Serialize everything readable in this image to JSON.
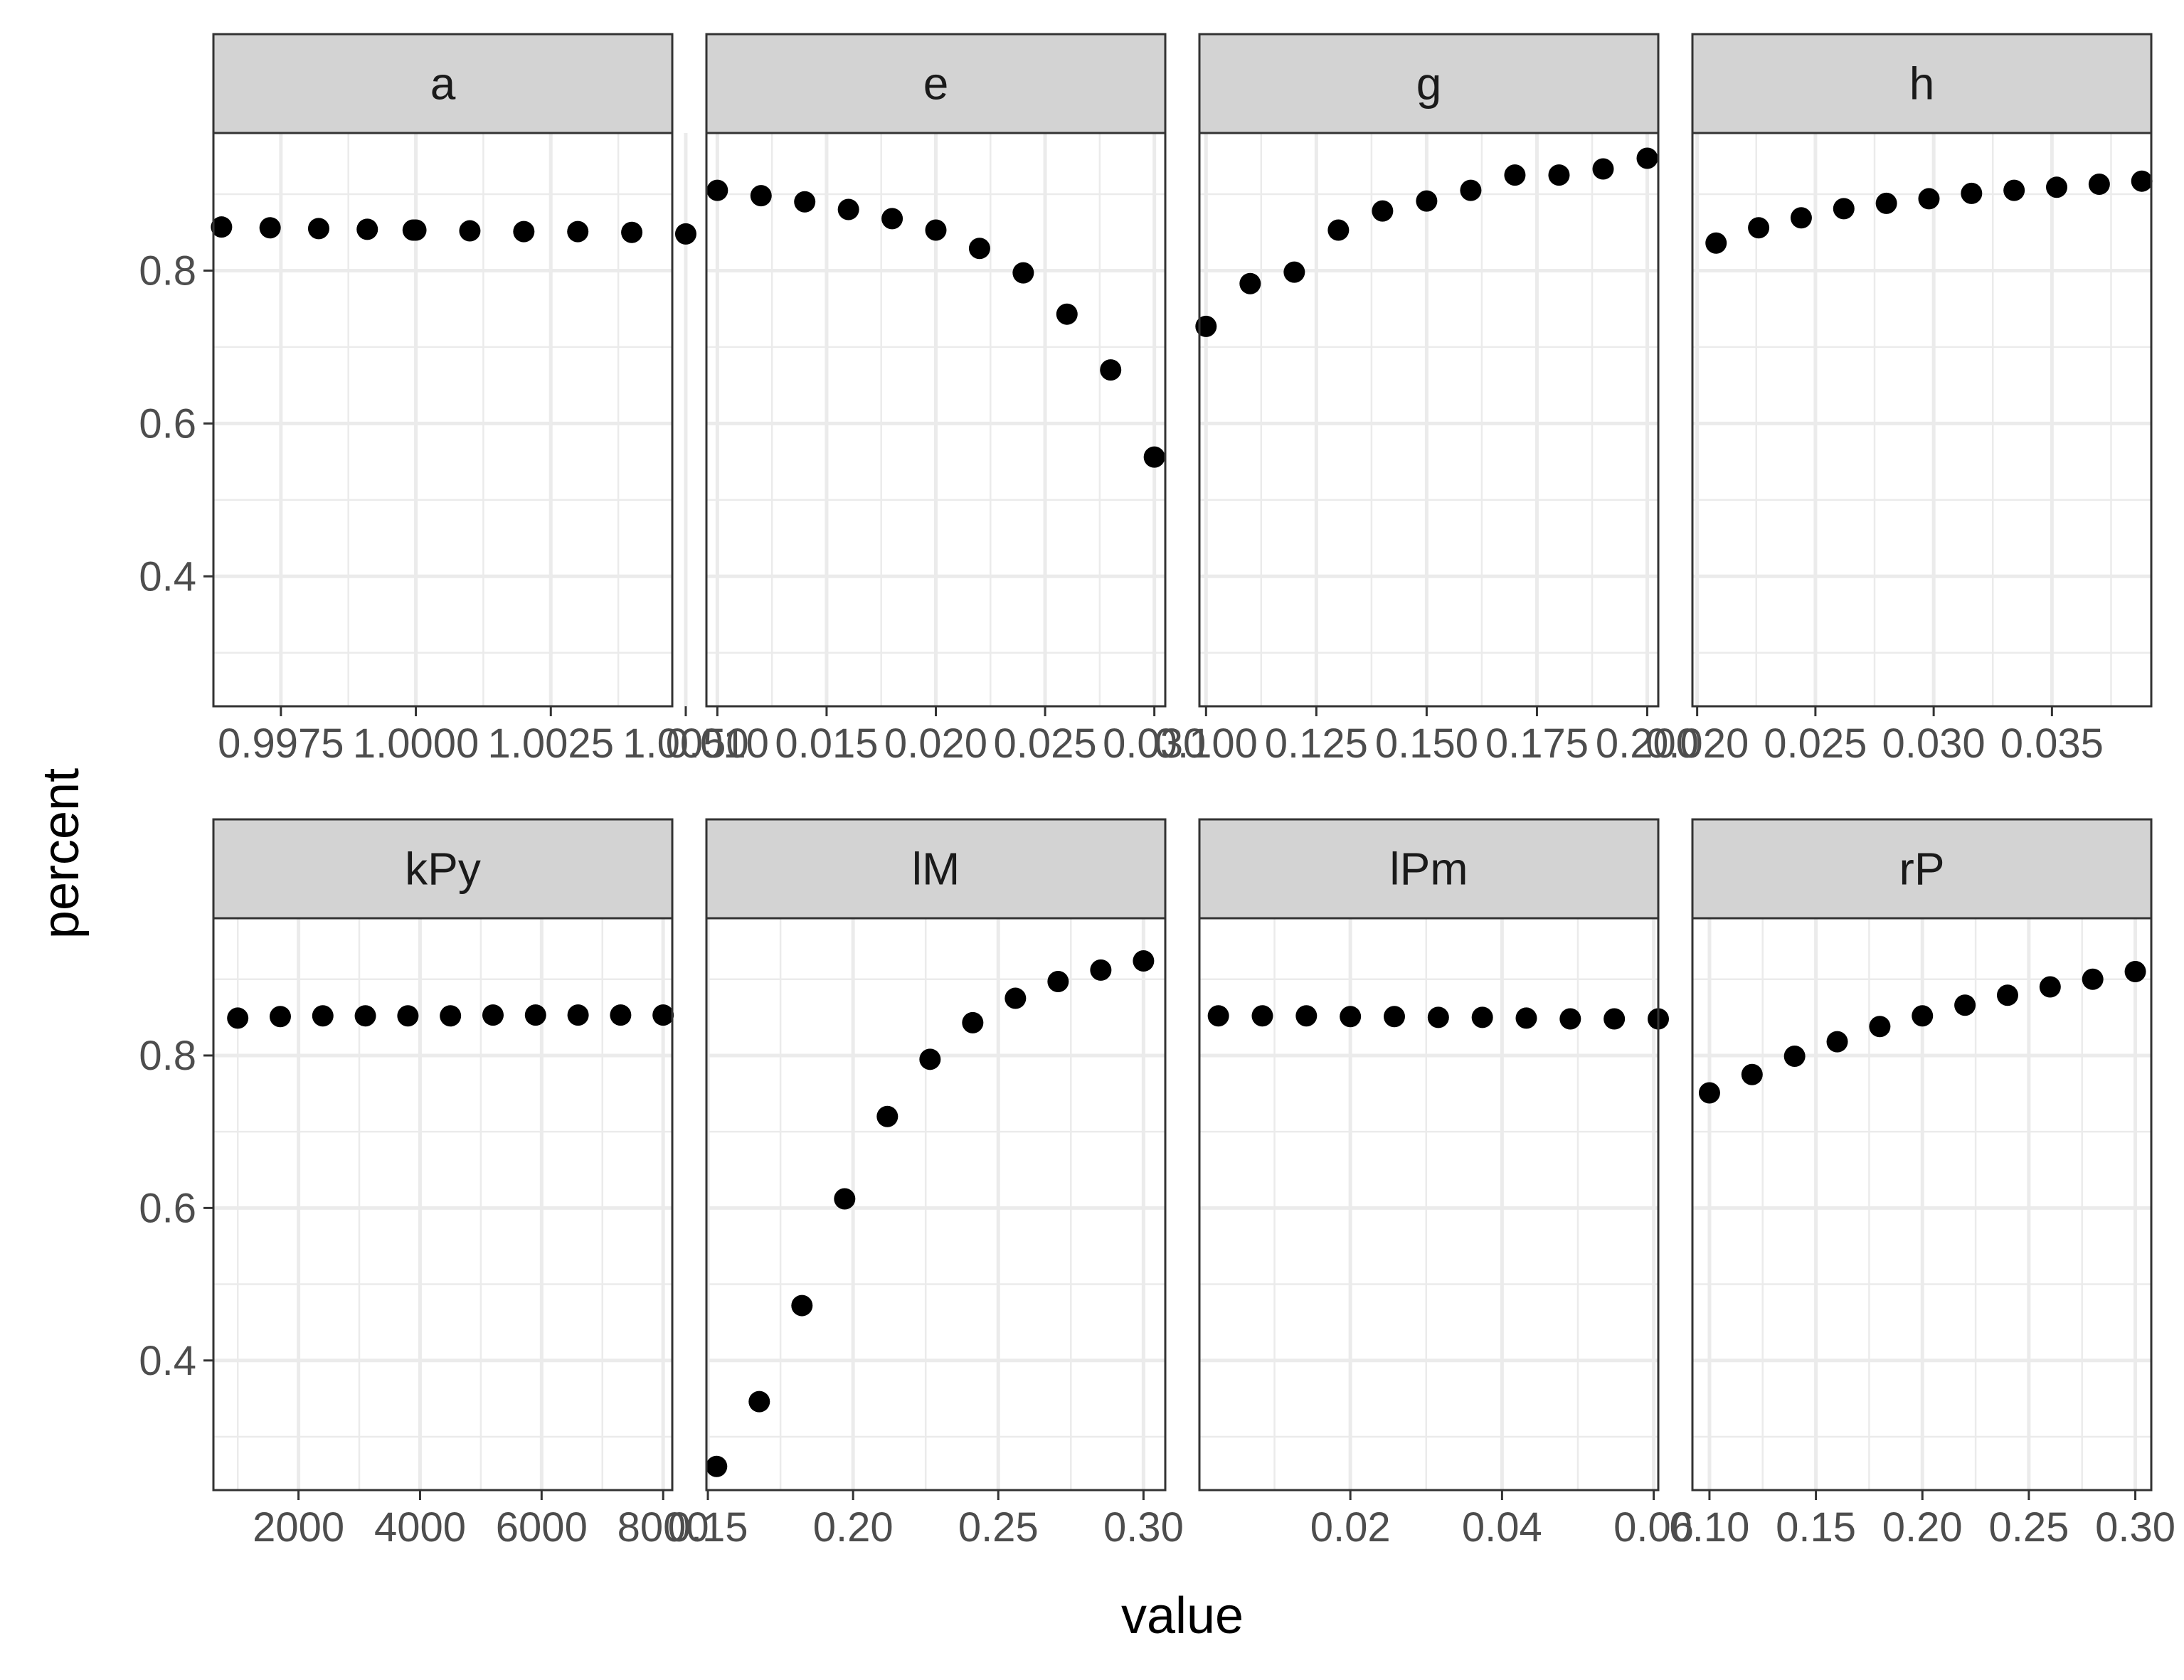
{
  "chart_data": {
    "type": "scatter",
    "layout": "facet-wrap, 2 rows x 4 columns, free x scales, shared y scale",
    "xlabel": "value",
    "ylabel": "percent",
    "ylim": [
      0.23,
      0.98
    ],
    "y_ticks": [
      0.4,
      0.6,
      0.8
    ],
    "y_tick_labels": [
      "0.4",
      "0.6",
      "0.8"
    ],
    "grid": true,
    "point_color": "#000000",
    "strip_fill": "#d3d3d3",
    "facets": [
      {
        "label": "a",
        "xlim": [
          0.99625,
          1.00475
        ],
        "x_ticks": [
          0.9975,
          1.0,
          1.0025,
          1.005
        ],
        "x_tick_labels": [
          "0.9975",
          "1.0000",
          "1.0025",
          "1.0050"
        ],
        "x": [
          0.9964,
          0.9973,
          0.9982,
          0.9991,
          0.99995,
          1.0,
          1.001,
          1.002,
          1.003,
          1.004,
          1.005
        ],
        "y": [
          0.857,
          0.856,
          0.855,
          0.854,
          0.853,
          0.853,
          0.852,
          0.851,
          0.851,
          0.85,
          0.848
        ]
      },
      {
        "label": "e",
        "xlim": [
          0.0095,
          0.0305
        ],
        "x_ticks": [
          0.01,
          0.015,
          0.02,
          0.025,
          0.03
        ],
        "x_tick_labels": [
          "0.010",
          "0.015",
          "0.020",
          "0.025",
          "0.030"
        ],
        "x": [
          0.01,
          0.012,
          0.014,
          0.016,
          0.018,
          0.02,
          0.022,
          0.024,
          0.026,
          0.028,
          0.03
        ],
        "y": [
          0.905,
          0.898,
          0.89,
          0.88,
          0.868,
          0.853,
          0.829,
          0.797,
          0.743,
          0.67,
          0.556
        ]
      },
      {
        "label": "g",
        "xlim": [
          0.0985,
          0.2025
        ],
        "x_ticks": [
          0.1,
          0.125,
          0.15,
          0.175,
          0.2
        ],
        "x_tick_labels": [
          "0.100",
          "0.125",
          "0.150",
          "0.175",
          "0.200"
        ],
        "x": [
          0.1,
          0.11,
          0.12,
          0.13,
          0.14,
          0.15,
          0.16,
          0.17,
          0.18,
          0.19,
          0.2
        ],
        "y": [
          0.727,
          0.783,
          0.798,
          0.853,
          0.878,
          0.891,
          0.905,
          0.925,
          0.925,
          0.933,
          0.947
        ]
      },
      {
        "label": "h",
        "xlim": [
          0.0198,
          0.0392
        ],
        "x_ticks": [
          0.02,
          0.025,
          0.03,
          0.035
        ],
        "x_tick_labels": [
          "0.020",
          "0.025",
          "0.030",
          "0.035"
        ],
        "x": [
          0.0208,
          0.0226,
          0.0244,
          0.0262,
          0.028,
          0.0298,
          0.0316,
          0.0334,
          0.0352,
          0.037,
          0.0388
        ],
        "y": [
          0.836,
          0.856,
          0.869,
          0.881,
          0.888,
          0.894,
          0.901,
          0.905,
          0.909,
          0.913,
          0.917
        ]
      },
      {
        "label": "kPy",
        "xlim": [
          600,
          8150
        ],
        "x_ticks": [
          2000,
          4000,
          6000,
          8000
        ],
        "x_tick_labels": [
          "2000",
          "4000",
          "6000",
          "8000"
        ],
        "x": [
          1000,
          1700,
          2400,
          3100,
          3800,
          4500,
          5200,
          5900,
          6600,
          7300,
          8000
        ],
        "y": [
          0.849,
          0.851,
          0.852,
          0.852,
          0.852,
          0.852,
          0.853,
          0.853,
          0.853,
          0.853,
          0.853
        ]
      },
      {
        "label": "lM",
        "xlim": [
          0.1495,
          0.3075
        ],
        "x_ticks": [
          0.15,
          0.2,
          0.25,
          0.3
        ],
        "x_tick_labels": [
          "0.15",
          "0.20",
          "0.25",
          "0.30"
        ],
        "x": [
          0.153,
          0.1677,
          0.1824,
          0.1971,
          0.2118,
          0.2265,
          0.2412,
          0.2559,
          0.2706,
          0.2853,
          0.3
        ],
        "y": [
          0.261,
          0.346,
          0.472,
          0.612,
          0.72,
          0.795,
          0.843,
          0.875,
          0.897,
          0.912,
          0.924
        ]
      },
      {
        "label": "lPm",
        "xlim": [
          0.0001,
          0.0606
        ],
        "x_ticks": [
          0.02,
          0.04,
          0.06
        ],
        "x_tick_labels": [
          "0.02",
          "0.04",
          "0.06"
        ],
        "x": [
          0.0026,
          0.0084,
          0.0142,
          0.02,
          0.0258,
          0.0316,
          0.0374,
          0.0432,
          0.049,
          0.0548,
          0.0606
        ],
        "y": [
          0.852,
          0.852,
          0.852,
          0.851,
          0.851,
          0.85,
          0.85,
          0.849,
          0.848,
          0.848,
          0.848
        ]
      },
      {
        "label": "rP",
        "xlim": [
          0.092,
          0.3075
        ],
        "x_ticks": [
          0.1,
          0.15,
          0.2,
          0.25,
          0.3
        ],
        "x_tick_labels": [
          "0.10",
          "0.15",
          "0.20",
          "0.25",
          "0.30"
        ],
        "x": [
          0.1,
          0.12,
          0.14,
          0.16,
          0.18,
          0.2,
          0.22,
          0.24,
          0.26,
          0.28,
          0.3
        ],
        "y": [
          0.751,
          0.775,
          0.799,
          0.818,
          0.838,
          0.852,
          0.866,
          0.879,
          0.89,
          0.9,
          0.91
        ]
      }
    ]
  }
}
